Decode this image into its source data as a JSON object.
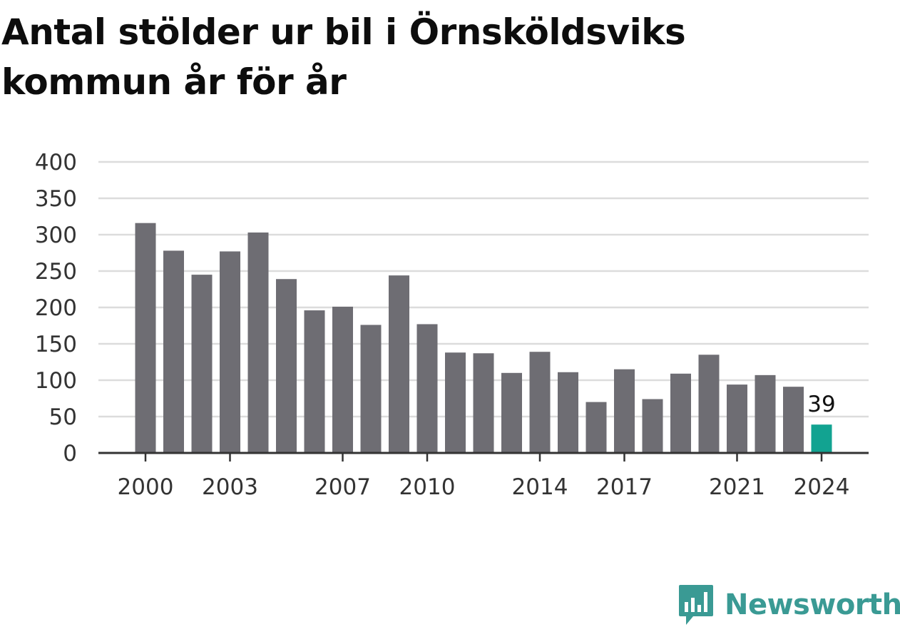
{
  "colors": {
    "bar": "#6e6d73",
    "highlight": "#12a391",
    "grid": "#dcdcdc",
    "axis": "#333333",
    "brand": "#3a9a94"
  },
  "brand": {
    "name": "Newsworthy",
    "icon": "newsworthy-logo-icon"
  },
  "chart_data": {
    "type": "bar",
    "title": "Antal stölder ur bil i Örnsköldsviks kommun år för år",
    "xlabel": "",
    "ylabel": "",
    "ylim": [
      0,
      400
    ],
    "yticks": [
      0,
      50,
      100,
      150,
      200,
      250,
      300,
      350,
      400
    ],
    "xticks": [
      "2000",
      "2003",
      "2007",
      "2010",
      "2014",
      "2017",
      "2021",
      "2024"
    ],
    "grid": true,
    "categories": [
      "2000",
      "2001",
      "2002",
      "2003",
      "2004",
      "2005",
      "2006",
      "2007",
      "2008",
      "2009",
      "2010",
      "2011",
      "2012",
      "2013",
      "2014",
      "2015",
      "2016",
      "2017",
      "2018",
      "2019",
      "2020",
      "2021",
      "2022",
      "2023",
      "2024"
    ],
    "values": [
      316,
      278,
      245,
      277,
      303,
      239,
      196,
      201,
      176,
      244,
      177,
      138,
      137,
      110,
      139,
      111,
      70,
      115,
      74,
      109,
      135,
      94,
      107,
      91,
      39
    ],
    "highlight_index": 24,
    "data_labels": [
      {
        "category": "2024",
        "text": "39"
      }
    ]
  }
}
